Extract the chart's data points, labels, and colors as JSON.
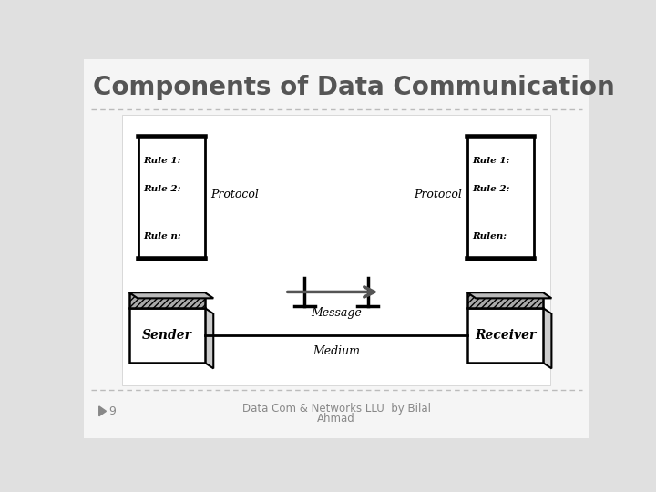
{
  "title": "Components of Data Communication",
  "title_fontsize": 20,
  "title_color": "#555555",
  "slide_bg": "#e0e0e0",
  "content_bg": "#ffffff",
  "footer_text_line1": "Data Com & Networks LLU  by Bilal",
  "footer_text_line2": "Ahmad",
  "footer_number": "9",
  "sender_label": "Sender",
  "receiver_label": "Receiver",
  "medium_label": "Medium",
  "message_label": "Message",
  "protocol_left": "Protocol",
  "protocol_right": "Protocol",
  "left_rules": [
    "Rule 1:",
    "Rule 2:",
    "Rule n:"
  ],
  "right_rules": [
    "Rule 1:",
    "Rule 2:",
    "Rulen:"
  ]
}
